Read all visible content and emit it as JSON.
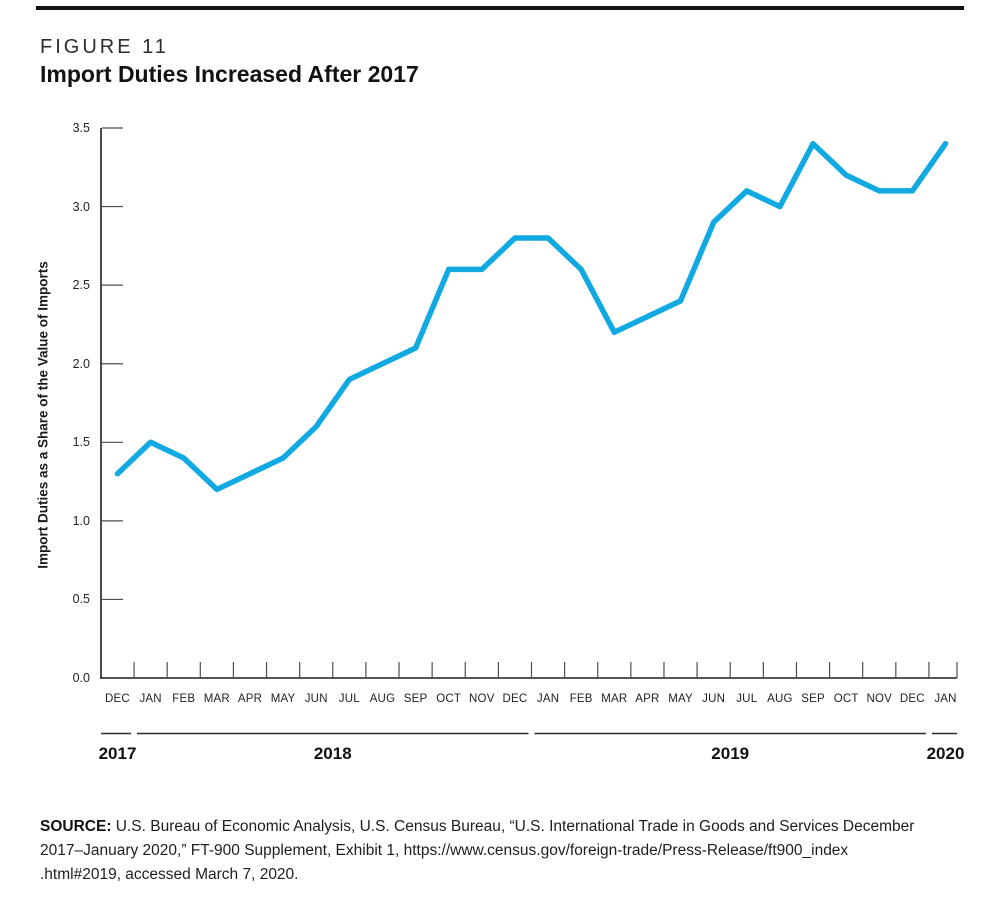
{
  "figure": {
    "label": "FIGURE 11",
    "title": "Import Duties Increased After 2017"
  },
  "chart_data": {
    "type": "line",
    "title": "Import Duties Increased After 2017",
    "xlabel": "",
    "ylabel": "Import Duties as a Share of the Value of Imports",
    "ylim": [
      0.0,
      3.5
    ],
    "ytick_step": 0.5,
    "ytick_labels": [
      "0.0",
      "0.5",
      "1.0",
      "1.5",
      "2.0",
      "2.5",
      "3.0",
      "3.5"
    ],
    "grid": false,
    "legend_position": "none",
    "line_color": "#11a9e2",
    "x_labels": [
      "DEC",
      "JAN",
      "FEB",
      "MAR",
      "APR",
      "MAY",
      "JUN",
      "JUL",
      "AUG",
      "SEP",
      "OCT",
      "NOV",
      "DEC",
      "JAN",
      "FEB",
      "MAR",
      "APR",
      "MAY",
      "JUN",
      "JUL",
      "AUG",
      "SEP",
      "OCT",
      "NOV",
      "DEC",
      "JAN"
    ],
    "year_groups": [
      {
        "label": "2017",
        "month_count": 1
      },
      {
        "label": "2018",
        "month_count": 12
      },
      {
        "label": "2019",
        "month_count": 12
      },
      {
        "label": "2020",
        "month_count": 1
      }
    ],
    "values": [
      1.3,
      1.5,
      1.4,
      1.2,
      1.3,
      1.4,
      1.6,
      1.9,
      2.0,
      2.1,
      2.6,
      2.6,
      2.8,
      2.8,
      2.6,
      2.2,
      2.3,
      2.4,
      2.9,
      3.1,
      3.0,
      3.4,
      3.2,
      3.1,
      3.1,
      3.4
    ]
  },
  "source": {
    "label": "SOURCE:",
    "lines": [
      "U.S. Bureau of Economic Analysis, U.S. Census Bureau, “U.S. International Trade in Goods and Services December",
      "2017–January 2020,” FT-900 Supplement, Exhibit 1, https://www.census.gov/foreign-trade/Press-Release/ft900_index",
      ".html#2019, accessed March 7, 2020."
    ]
  }
}
